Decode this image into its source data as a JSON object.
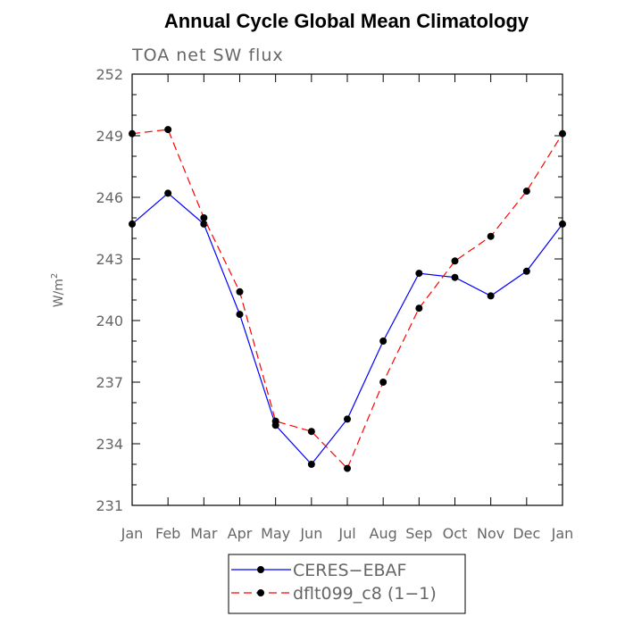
{
  "chart_data": {
    "type": "line",
    "title": "Annual Cycle Global Mean Climatology",
    "subtitle": "TOA net SW flux",
    "xlabel": "",
    "ylabel": "W/m",
    "ylabel_superscript": "2",
    "categories": [
      "Jan",
      "Feb",
      "Mar",
      "Apr",
      "May",
      "Jun",
      "Jul",
      "Aug",
      "Sep",
      "Oct",
      "Nov",
      "Dec",
      "Jan"
    ],
    "ylim": [
      231,
      252
    ],
    "yticks": [
      231,
      234,
      237,
      240,
      243,
      246,
      249,
      252
    ],
    "grid": false,
    "legend_position": "bottom-center",
    "series": [
      {
        "name": "CERES−EBAF",
        "color": "#0000ff",
        "dash": "solid",
        "marker": "circle",
        "values": [
          244.7,
          246.2,
          244.7,
          240.3,
          234.9,
          233.0,
          235.2,
          239.0,
          242.3,
          242.1,
          241.2,
          242.4,
          244.7
        ]
      },
      {
        "name": "dflt099_c8 (1−1)",
        "color": "#ff0000",
        "dash": "dashed",
        "marker": "circle",
        "values": [
          249.1,
          249.3,
          245.0,
          241.4,
          235.1,
          234.6,
          232.8,
          237.0,
          240.6,
          242.9,
          244.1,
          246.3,
          249.1
        ]
      }
    ]
  }
}
